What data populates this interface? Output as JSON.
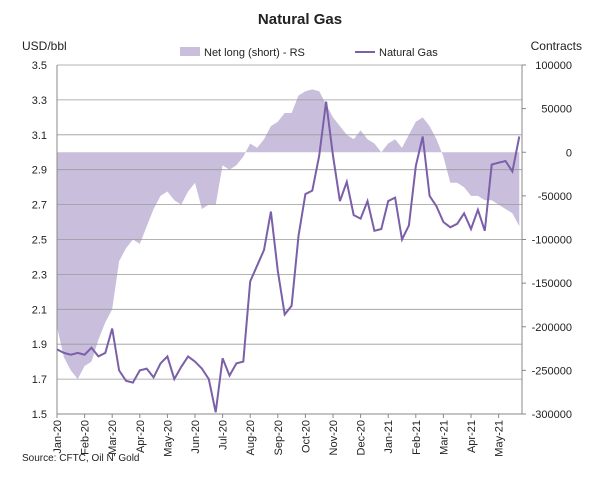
{
  "chart_data": {
    "type": "line",
    "title": "Natural Gas",
    "y_label": "USD/bbl",
    "y2_label": "Contracts",
    "source": "Source: CFTC, Oil N' Gold",
    "categories": [
      "Jan-20",
      null,
      null,
      null,
      "Feb-20",
      null,
      null,
      null,
      "Mar-20",
      null,
      null,
      null,
      "Apr-20",
      null,
      null,
      null,
      "May-20",
      null,
      null,
      null,
      "Jun-20",
      null,
      null,
      null,
      "Jul-20",
      null,
      null,
      null,
      "Aug-20",
      null,
      null,
      null,
      "Sep-20",
      null,
      null,
      null,
      "Oct-20",
      null,
      null,
      null,
      "Nov-20",
      null,
      null,
      null,
      "Dec-20",
      null,
      null,
      null,
      "Jan-21",
      null,
      null,
      null,
      "Feb-21",
      null,
      null,
      null,
      "Mar-21",
      null,
      null,
      null,
      "Apr-21",
      null,
      null,
      null,
      "May-21",
      null,
      null,
      null
    ],
    "series": [
      {
        "name": "Net long (short) - RS",
        "kind": "area",
        "axis": "y2",
        "color": "#c9bedc",
        "values": [
          -200000,
          -235000,
          -250000,
          -260000,
          -245000,
          -240000,
          -215000,
          -195000,
          -180000,
          -125000,
          -110000,
          -100000,
          -105000,
          -85000,
          -65000,
          -50000,
          -45000,
          -55000,
          -60000,
          -45000,
          -35000,
          -65000,
          -60000,
          -60000,
          -15000,
          -20000,
          -15000,
          -5000,
          10000,
          5000,
          15000,
          30000,
          35000,
          45000,
          45000,
          65000,
          70000,
          72000,
          70000,
          55000,
          40000,
          30000,
          20000,
          15000,
          25000,
          15000,
          10000,
          0,
          10000,
          15000,
          5000,
          20000,
          35000,
          40000,
          30000,
          15000,
          -5000,
          -35000,
          -35000,
          -40000,
          -50000,
          -50000,
          -55000,
          -55000,
          -60000,
          -65000,
          -70000,
          -85000
        ]
      },
      {
        "name": "Natural Gas",
        "kind": "line",
        "axis": "y",
        "color": "#7b5fa8",
        "values": [
          1.87,
          1.85,
          1.84,
          1.85,
          1.84,
          1.88,
          1.83,
          1.85,
          1.99,
          1.75,
          1.69,
          1.68,
          1.75,
          1.76,
          1.71,
          1.79,
          1.83,
          1.7,
          1.77,
          1.83,
          1.8,
          1.76,
          1.7,
          1.51,
          1.82,
          1.72,
          1.79,
          1.8,
          2.26,
          2.35,
          2.44,
          2.66,
          2.32,
          2.07,
          2.12,
          2.52,
          2.76,
          2.78,
          2.98,
          3.29,
          2.98,
          2.72,
          2.83,
          2.64,
          2.62,
          2.72,
          2.55,
          2.56,
          2.72,
          2.74,
          2.5,
          2.58,
          2.92,
          3.09,
          2.75,
          2.69,
          2.6,
          2.57,
          2.59,
          2.65,
          2.56,
          2.67,
          2.55,
          2.93,
          2.94,
          2.95,
          2.89,
          3.09
        ]
      }
    ],
    "ylim": [
      1.5,
      3.5
    ],
    "yticks": [
      1.5,
      1.7,
      1.9,
      2.1,
      2.3,
      2.5,
      2.7,
      2.9,
      3.1,
      3.3,
      3.5
    ],
    "y2lim": [
      -300000,
      100000
    ],
    "y2ticks": [
      -300000,
      -250000,
      -200000,
      -150000,
      -100000,
      -50000,
      0,
      50000,
      100000
    ],
    "grid": true,
    "legend": "top"
  }
}
